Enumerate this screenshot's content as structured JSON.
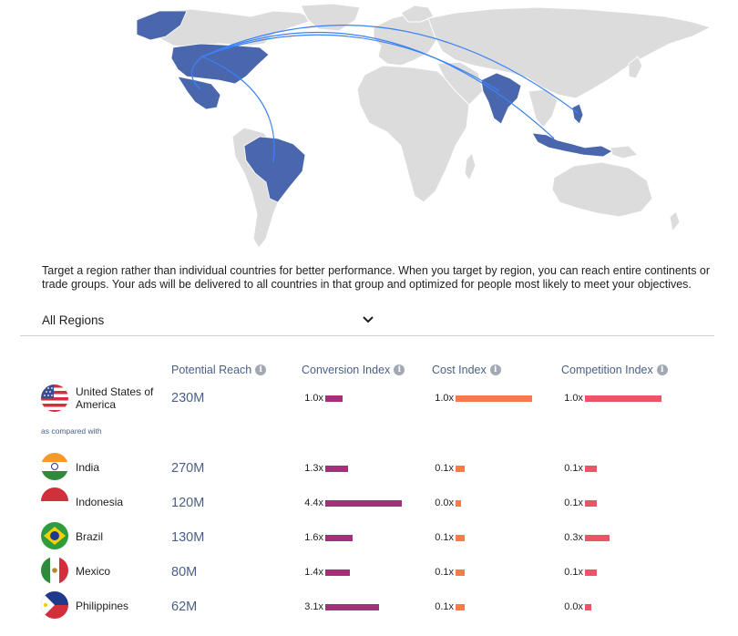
{
  "description": "Target a region rather than individual countries for better performance. When you target by region, you can reach entire continents or trade groups. Your ads will be delivered to all countries in that group and optimized for people most likely to meet your objectives.",
  "region_select": {
    "value": "All Regions",
    "icon": "chevron-down-icon"
  },
  "columns": {
    "reach": "Potential Reach",
    "conversion": "Conversion Index",
    "cost": "Cost Index",
    "competition": "Competition Index",
    "info_icon": "i"
  },
  "compared_label": "as compared with",
  "colors": {
    "conversion": "#a4307a",
    "cost": "#f47b4a",
    "competition": "#ec5468",
    "highlight_country": "#4a67ad",
    "land": "#dcdcdc",
    "arc": "#3b82f6"
  },
  "baseline": {
    "country": "United States of America",
    "flag": "us-flag-icon",
    "reach": "230M",
    "conversion": {
      "label": "1.0x",
      "value": 1.0
    },
    "cost": {
      "label": "1.0x",
      "value": 1.0
    },
    "competition": {
      "label": "1.0x",
      "value": 1.0
    }
  },
  "rows": [
    {
      "country": "India",
      "flag": "india-flag-icon",
      "reach": "270M",
      "conversion": {
        "label": "1.3x",
        "value": 1.3
      },
      "cost": {
        "label": "0.1x",
        "value": 0.1
      },
      "competition": {
        "label": "0.1x",
        "value": 0.1
      }
    },
    {
      "country": "Indonesia",
      "flag": "indonesia-flag-icon",
      "reach": "120M",
      "conversion": {
        "label": "4.4x",
        "value": 4.4
      },
      "cost": {
        "label": "0.0x",
        "value": 0.0
      },
      "competition": {
        "label": "0.1x",
        "value": 0.1
      }
    },
    {
      "country": "Brazil",
      "flag": "brazil-flag-icon",
      "reach": "130M",
      "conversion": {
        "label": "1.6x",
        "value": 1.6
      },
      "cost": {
        "label": "0.1x",
        "value": 0.1
      },
      "competition": {
        "label": "0.3x",
        "value": 0.3
      }
    },
    {
      "country": "Mexico",
      "flag": "mexico-flag-icon",
      "reach": "80M",
      "conversion": {
        "label": "1.4x",
        "value": 1.4
      },
      "cost": {
        "label": "0.1x",
        "value": 0.1
      },
      "competition": {
        "label": "0.1x",
        "value": 0.1
      }
    },
    {
      "country": "Philippines",
      "flag": "philippines-flag-icon",
      "reach": "62M",
      "conversion": {
        "label": "3.1x",
        "value": 3.1
      },
      "cost": {
        "label": "0.1x",
        "value": 0.1
      },
      "competition": {
        "label": "0.0x",
        "value": 0.0
      }
    }
  ]
}
